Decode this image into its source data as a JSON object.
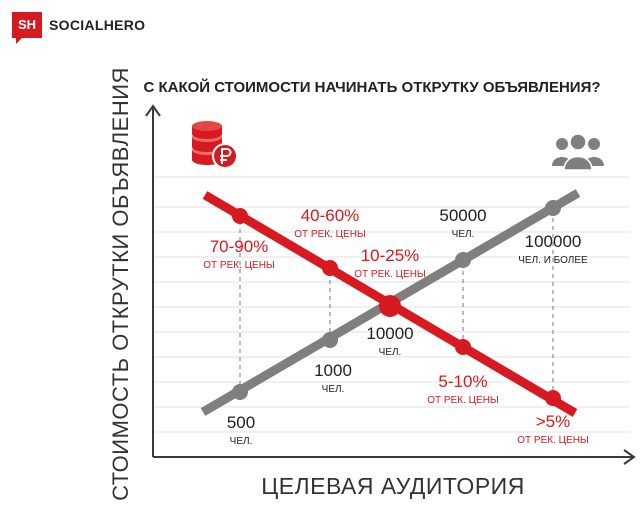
{
  "brand": {
    "mark": "SH",
    "name": "SOCIALHERO"
  },
  "colors": {
    "red": "#d71920",
    "gray": "#7f7f7f",
    "text": "#222222",
    "grid": "#e2e2e2"
  },
  "icons": {
    "price": "coins-ruble-icon",
    "audience": "people-group-icon"
  },
  "chart_data": {
    "type": "line",
    "title": "С КАКОЙ СТОИМОСТИ НАЧИНАТЬ ОТКРУТКУ ОБЪЯВЛЕНИЯ?",
    "xlabel": "ЦЕЛЕВАЯ АУДИТОРИЯ",
    "ylabel": "СТОИМОСТЬ ОТКРУТКИ ОБЪЯВЛЕНИЯ",
    "grid": true,
    "x": [
      500,
      1000,
      10000,
      50000,
      100000
    ],
    "series": [
      {
        "color": "#d71920",
        "labels": [
          {
            "value": "70-90%",
            "note": "ОТ РЕК. ЦЕНЫ"
          },
          {
            "value": "40-60%",
            "note": "ОТ РЕК. ЦЕНЫ"
          },
          {
            "value": "10-25%",
            "note": "ОТ РЕК. ЦЕНЫ"
          },
          {
            "value": "5-10%",
            "note": "ОТ РЕК. ЦЕНЫ"
          },
          {
            "value": ">5%",
            "note": "ОТ РЕК. ЦЕНЫ"
          }
        ]
      },
      {
        "color": "#7f7f7f",
        "labels": [
          {
            "value": "500",
            "note": "ЧЕЛ."
          },
          {
            "value": "1000",
            "note": "ЧЕЛ."
          },
          {
            "value": "10000",
            "note": "ЧЕЛ."
          },
          {
            "value": "50000",
            "note": "ЧЕЛ."
          },
          {
            "value": "100000",
            "note": "ЧЕЛ. И БОЛЕЕ"
          }
        ]
      }
    ]
  }
}
